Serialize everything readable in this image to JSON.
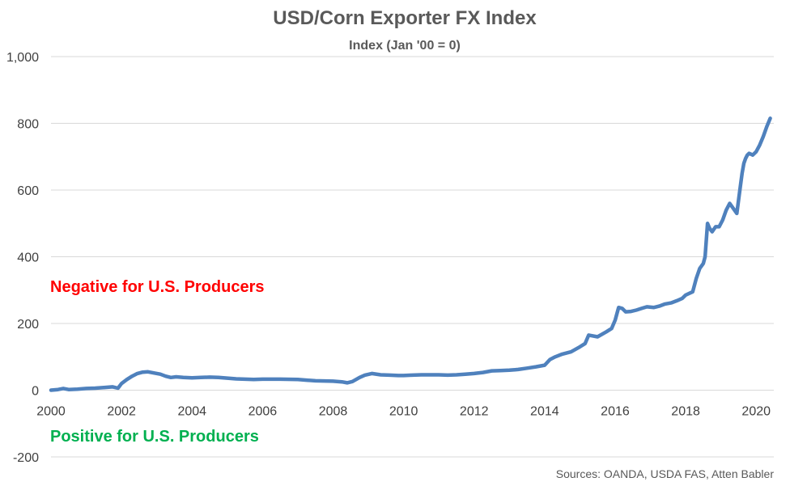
{
  "chart_data": {
    "type": "line",
    "title": "USD/Corn Exporter FX Index",
    "subtitle": "Index (Jan '00 = 0)",
    "xlabel": "",
    "ylabel": "",
    "xlim": [
      2000,
      2020.5
    ],
    "ylim": [
      -200,
      1000
    ],
    "y_ticks": [
      {
        "value": -200,
        "label": "-200"
      },
      {
        "value": 0,
        "label": "0"
      },
      {
        "value": 200,
        "label": "200"
      },
      {
        "value": 400,
        "label": "400"
      },
      {
        "value": 600,
        "label": "600"
      },
      {
        "value": 800,
        "label": "800"
      },
      {
        "value": 1000,
        "label": "1,000"
      }
    ],
    "x_ticks": [
      {
        "value": 2000,
        "label": "2000"
      },
      {
        "value": 2002,
        "label": "2002"
      },
      {
        "value": 2004,
        "label": "2004"
      },
      {
        "value": 2006,
        "label": "2006"
      },
      {
        "value": 2008,
        "label": "2008"
      },
      {
        "value": 2010,
        "label": "2010"
      },
      {
        "value": 2012,
        "label": "2012"
      },
      {
        "value": 2014,
        "label": "2014"
      },
      {
        "value": 2016,
        "label": "2016"
      },
      {
        "value": 2018,
        "label": "2018"
      },
      {
        "value": 2020,
        "label": "2020"
      }
    ],
    "grid": true,
    "legend": "none",
    "annotations": [
      {
        "text": "Negative for U.S. Producers",
        "color": "#ff0000"
      },
      {
        "text": "Positive for U.S. Producers",
        "color": "#00b050"
      }
    ],
    "source": "Sources: OANDA, USDA FAS, Atten Babler",
    "series": [
      {
        "color": "#4f81bd",
        "x": [
          2000.0,
          2000.2,
          2000.35,
          2000.5,
          2000.75,
          2001.0,
          2001.25,
          2001.5,
          2001.75,
          2001.9,
          2002.0,
          2002.15,
          2002.3,
          2002.45,
          2002.6,
          2002.75,
          2002.9,
          2003.1,
          2003.25,
          2003.4,
          2003.55,
          2003.75,
          2004.0,
          2004.25,
          2004.5,
          2004.75,
          2005.0,
          2005.25,
          2005.5,
          2005.75,
          2006.0,
          2006.5,
          2007.0,
          2007.25,
          2007.5,
          2008.0,
          2008.25,
          2008.4,
          2008.55,
          2008.75,
          2008.9,
          2009.1,
          2009.35,
          2009.6,
          2009.85,
          2010.0,
          2010.25,
          2010.5,
          2011.0,
          2011.25,
          2011.5,
          2011.75,
          2012.0,
          2012.25,
          2012.5,
          2012.75,
          2013.0,
          2013.25,
          2013.5,
          2013.75,
          2014.0,
          2014.15,
          2014.3,
          2014.5,
          2014.75,
          2015.0,
          2015.15,
          2015.25,
          2015.5,
          2015.75,
          2015.9,
          2016.0,
          2016.1,
          2016.2,
          2016.3,
          2016.45,
          2016.6,
          2016.75,
          2016.9,
          2017.1,
          2017.25,
          2017.4,
          2017.6,
          2017.75,
          2017.9,
          2018.0,
          2018.2,
          2018.3,
          2018.4,
          2018.5,
          2018.55,
          2018.62,
          2018.68,
          2018.75,
          2018.85,
          2018.95,
          2019.05,
          2019.15,
          2019.25,
          2019.35,
          2019.45,
          2019.55,
          2019.6,
          2019.65,
          2019.7,
          2019.75,
          2019.8,
          2019.9,
          2020.0,
          2020.1,
          2020.2,
          2020.3,
          2020.4
        ],
        "y": [
          0,
          2,
          5,
          2,
          3,
          5,
          6,
          8,
          10,
          6,
          20,
          32,
          42,
          50,
          54,
          55,
          52,
          48,
          42,
          38,
          40,
          38,
          37,
          38,
          39,
          38,
          36,
          34,
          33,
          32,
          33,
          33,
          32,
          30,
          28,
          27,
          25,
          22,
          26,
          38,
          45,
          50,
          46,
          45,
          44,
          44,
          45,
          46,
          46,
          45,
          46,
          48,
          50,
          53,
          58,
          59,
          60,
          62,
          66,
          70,
          75,
          92,
          100,
          108,
          115,
          130,
          140,
          165,
          160,
          175,
          185,
          210,
          248,
          245,
          235,
          236,
          240,
          245,
          250,
          248,
          252,
          258,
          262,
          268,
          275,
          285,
          295,
          335,
          365,
          380,
          400,
          500,
          485,
          475,
          490,
          490,
          510,
          540,
          560,
          545,
          530,
          610,
          650,
          680,
          695,
          705,
          710,
          705,
          715,
          735,
          760,
          790,
          815
        ]
      }
    ]
  }
}
